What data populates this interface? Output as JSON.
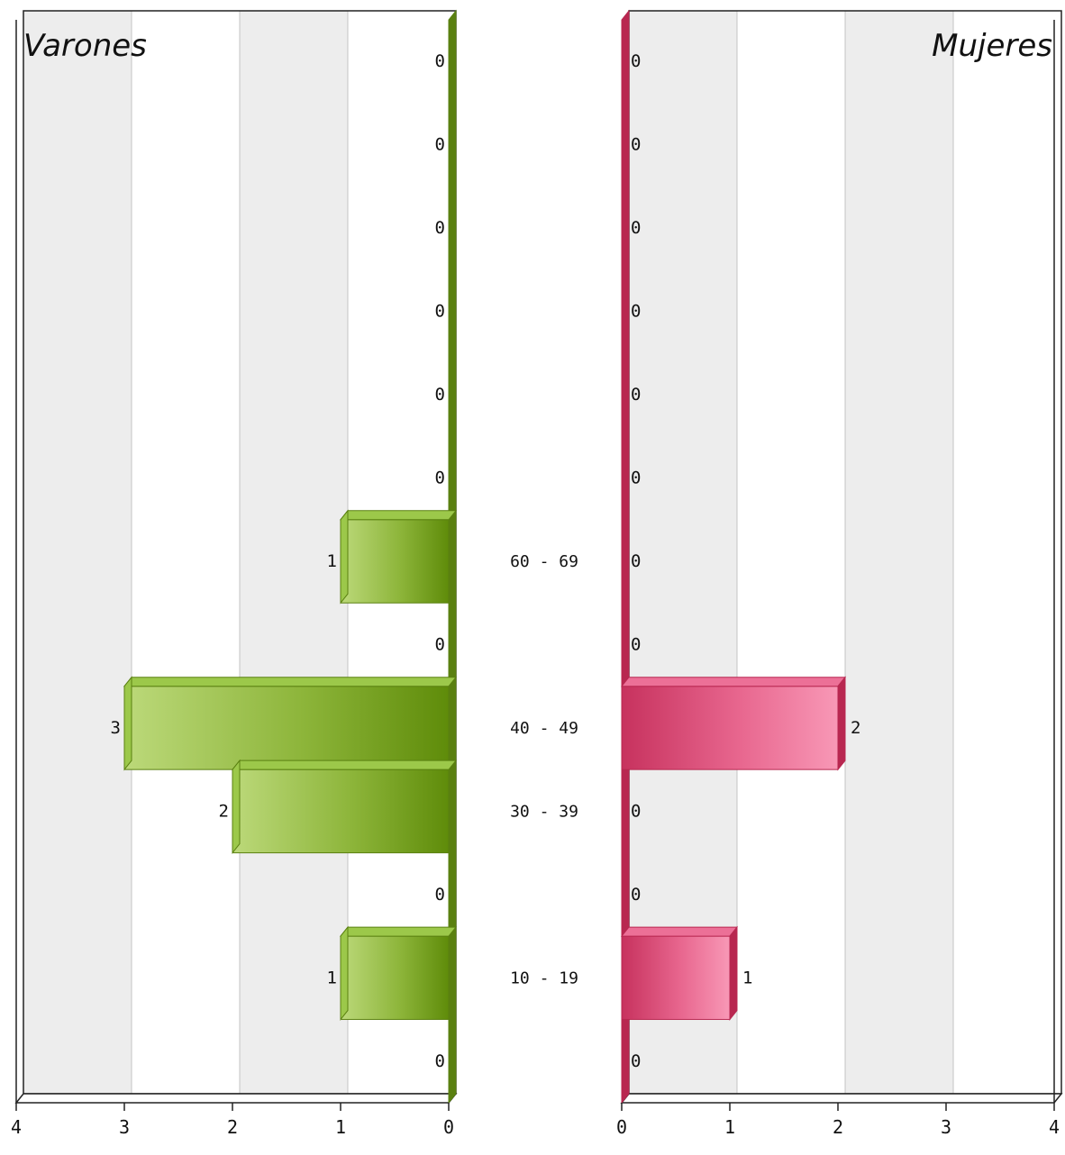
{
  "chart_data": {
    "type": "bar",
    "orientation": "horizontal-population-pyramid",
    "title": "",
    "categories_top_to_bottom": [
      "",
      "",
      "",
      "",
      "",
      "",
      "60 - 69",
      "",
      "40 - 49",
      "30 - 39",
      "",
      "10 - 19",
      ""
    ],
    "xlim": [
      0,
      4
    ],
    "x_ticks": [
      "4",
      "3",
      "2",
      "1",
      "0",
      "0",
      "1",
      "2",
      "3",
      "4"
    ],
    "grid": true,
    "series": [
      {
        "name": "Varones",
        "side": "left",
        "color": "#7ba428",
        "values": [
          0,
          0,
          0,
          0,
          0,
          0,
          1,
          0,
          3,
          2,
          0,
          1,
          0
        ]
      },
      {
        "name": "Mujeres",
        "side": "right",
        "color": "#e0507a",
        "values": [
          0,
          0,
          0,
          0,
          0,
          0,
          0,
          0,
          2,
          0,
          0,
          1,
          0
        ]
      }
    ]
  }
}
